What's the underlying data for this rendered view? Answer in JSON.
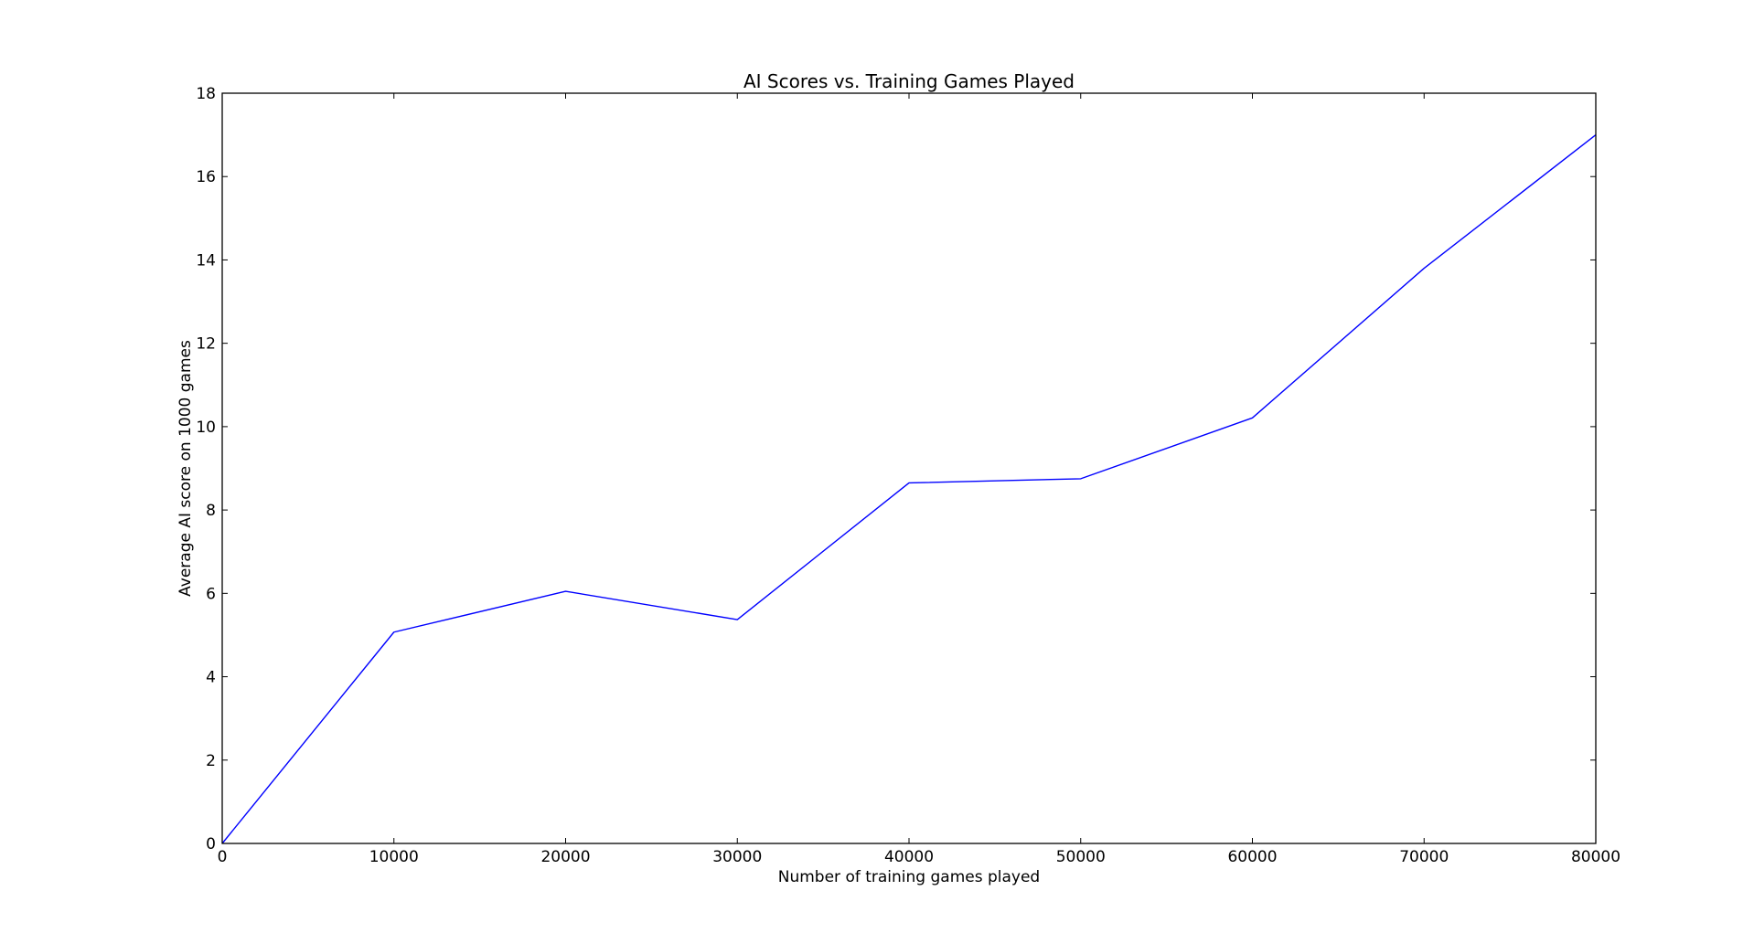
{
  "chart_data": {
    "type": "line",
    "title": "AI Scores vs. Training Games Played",
    "xlabel": "Number of training games played",
    "ylabel": "Average AI score on 1000 games",
    "xlim": [
      0,
      80000
    ],
    "ylim": [
      0,
      18
    ],
    "xticks": [
      0,
      10000,
      20000,
      30000,
      40000,
      50000,
      60000,
      70000,
      80000
    ],
    "yticks": [
      0,
      2,
      4,
      6,
      8,
      10,
      12,
      14,
      16,
      18
    ],
    "grid": false,
    "series": [
      {
        "color": "#0000ff",
        "x": [
          0,
          10000,
          20000,
          30000,
          40000,
          50000,
          60000,
          70000,
          80000
        ],
        "y": [
          0.0,
          5.07,
          6.05,
          5.37,
          8.65,
          8.75,
          10.21,
          13.8,
          17.0
        ]
      }
    ]
  }
}
